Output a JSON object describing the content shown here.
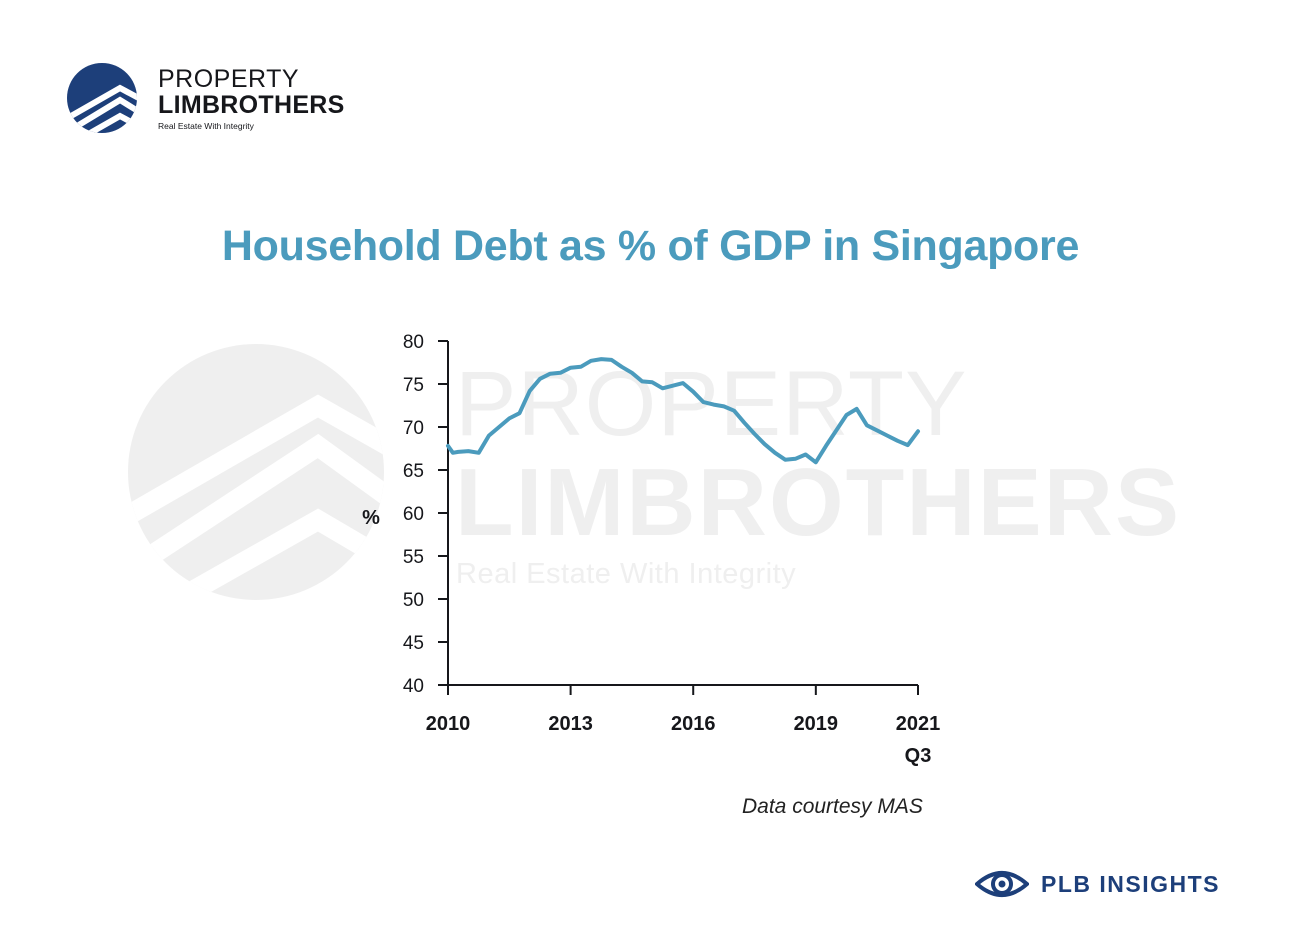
{
  "logo": {
    "line1": "PROPERTY",
    "line2": "LIMBROTHERS",
    "tagline": "Real Estate With Integrity",
    "color": "#1d3f7a"
  },
  "watermark": {
    "line1": "PROPERTY",
    "line2": "LIMBROTHERS",
    "tagline": "Real Estate With Integrity"
  },
  "source_note": "Data courtesy MAS",
  "brand": {
    "label": "PLB INSIGHTS",
    "icon": "eye-icon",
    "color": "#1d3f7a"
  },
  "chart_data": {
    "type": "line",
    "title": "Household Debt as % of GDP in Singapore",
    "ylabel": "%",
    "xlabel": "",
    "ylim": [
      40,
      80
    ],
    "yticks": [
      40,
      45,
      50,
      55,
      60,
      65,
      70,
      75,
      80
    ],
    "xlim": [
      2010,
      2021.5
    ],
    "xticks": [
      {
        "value": 2010,
        "label": "2010"
      },
      {
        "value": 2013,
        "label": "2013"
      },
      {
        "value": 2016,
        "label": "2016"
      },
      {
        "value": 2019,
        "label": "2019"
      },
      {
        "value": 2021.5,
        "label": "2021",
        "sublabel": "Q3"
      }
    ],
    "grid": false,
    "line_color": "#4b9bbd",
    "series": [
      {
        "x": [
          2010.0,
          2010.12,
          2010.25,
          2010.5,
          2010.75,
          2011.0,
          2011.25,
          2011.5,
          2011.75,
          2012.0,
          2012.25,
          2012.5,
          2012.75,
          2013.0,
          2013.25,
          2013.5,
          2013.75,
          2014.0,
          2014.25,
          2014.5,
          2014.75,
          2015.0,
          2015.25,
          2015.5,
          2015.75,
          2016.0,
          2016.25,
          2016.5,
          2016.75,
          2017.0,
          2017.25,
          2017.5,
          2017.75,
          2018.0,
          2018.25,
          2018.5,
          2018.75,
          2019.0,
          2019.25,
          2019.5,
          2019.75,
          2020.0,
          2020.25,
          2020.5,
          2020.75,
          2021.0,
          2021.25,
          2021.5
        ],
        "values": [
          67.8,
          67.0,
          67.1,
          67.2,
          67.0,
          69.0,
          70.0,
          71.0,
          71.6,
          74.2,
          75.6,
          76.2,
          76.3,
          76.9,
          77.0,
          77.7,
          77.9,
          77.8,
          77.0,
          76.3,
          75.3,
          75.2,
          74.5,
          74.8,
          75.1,
          74.1,
          72.9,
          72.6,
          72.4,
          71.9,
          70.5,
          69.2,
          68.0,
          67.0,
          66.2,
          66.3,
          66.8,
          65.9,
          67.8,
          69.6,
          71.4,
          72.1,
          70.2,
          69.6,
          69.0,
          68.4,
          67.9,
          69.5
        ]
      }
    ]
  }
}
